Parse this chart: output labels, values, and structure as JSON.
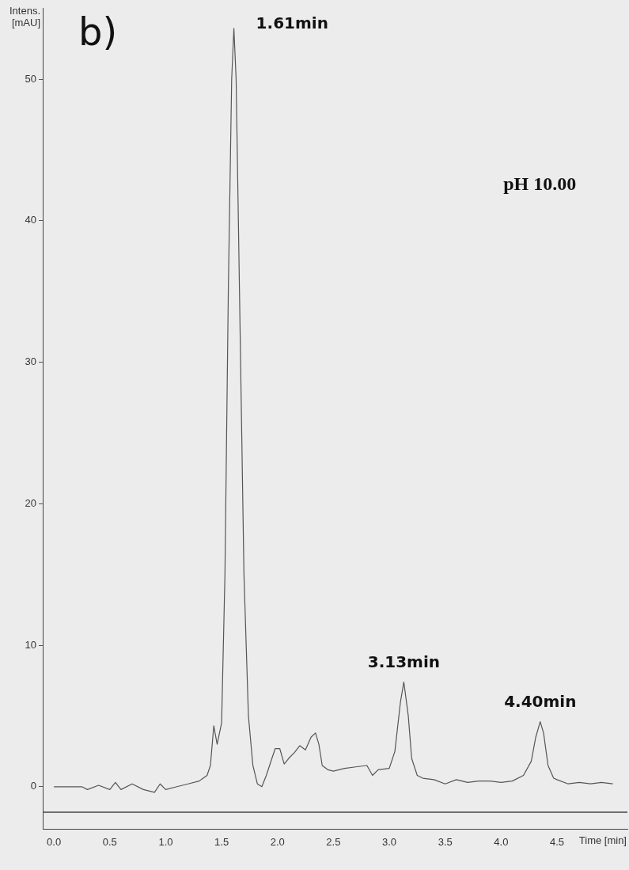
{
  "chart_data": {
    "type": "line",
    "xlabel": "Time [min]",
    "ylabel": "Intens. [mAU]",
    "annotations": [
      "b)",
      "pH 10.00",
      {
        "text": "1.61min",
        "x": 1.61,
        "y": 53.6
      },
      {
        "text": "3.13min",
        "x": 3.13,
        "y": 7.4
      },
      {
        "text": "4.40min",
        "x": 4.35,
        "y": 4.6
      }
    ],
    "xlim": [
      -0.1,
      5.13
    ],
    "ylim": [
      -3,
      55
    ],
    "xticks": [
      {
        "value": 0,
        "label": "0.0"
      },
      0.5,
      {
        "value": 1,
        "label": "1.0"
      },
      1.5,
      {
        "value": 2,
        "label": "2.0"
      },
      2.5,
      {
        "value": 3,
        "label": "3.0"
      },
      3.5,
      {
        "value": 4,
        "label": "4.0"
      },
      4.5
    ],
    "yticks": [
      0,
      10,
      20,
      30,
      40,
      50
    ],
    "ref_lines": [
      {
        "axis": "y",
        "value": -1.8,
        "color": "#444444"
      }
    ],
    "grid": false,
    "legend": false,
    "marker": "none",
    "line_style": "solid",
    "series": [
      {
        "color": "#555555",
        "x": [
          0,
          0.2,
          0.25,
          0.3,
          0.4,
          0.5,
          0.55,
          0.6,
          0.7,
          0.8,
          0.9,
          0.95,
          1.0,
          1.1,
          1.2,
          1.3,
          1.37,
          1.4,
          1.43,
          1.46,
          1.5,
          1.53,
          1.56,
          1.59,
          1.61,
          1.63,
          1.66,
          1.7,
          1.74,
          1.78,
          1.82,
          1.86,
          1.9,
          1.95,
          1.98,
          2.02,
          2.06,
          2.1,
          2.15,
          2.2,
          2.25,
          2.3,
          2.34,
          2.37,
          2.4,
          2.45,
          2.5,
          2.6,
          2.7,
          2.8,
          2.85,
          2.9,
          3.0,
          3.05,
          3.1,
          3.13,
          3.17,
          3.2,
          3.25,
          3.3,
          3.4,
          3.5,
          3.6,
          3.7,
          3.8,
          3.9,
          4.0,
          4.1,
          4.2,
          4.27,
          4.31,
          4.35,
          4.38,
          4.42,
          4.47,
          4.5,
          4.6,
          4.7,
          4.8,
          4.9,
          5.0
        ],
        "values": [
          0,
          0,
          0,
          -0.2,
          0.1,
          -0.2,
          0.3,
          -0.2,
          0.2,
          -0.2,
          -0.4,
          0.2,
          -0.2,
          0,
          0.2,
          0.4,
          0.8,
          1.5,
          4.3,
          3.0,
          4.5,
          15,
          35,
          50,
          53.6,
          50,
          35,
          15,
          5,
          1.5,
          0.2,
          0,
          0.8,
          2.0,
          2.7,
          2.7,
          1.6,
          2.0,
          2.4,
          2.9,
          2.6,
          3.5,
          3.8,
          3.0,
          1.5,
          1.2,
          1.1,
          1.3,
          1.4,
          1.5,
          0.8,
          1.2,
          1.3,
          2.5,
          6.0,
          7.4,
          5,
          2,
          0.8,
          0.6,
          0.5,
          0.2,
          0.5,
          0.3,
          0.4,
          0.4,
          0.3,
          0.4,
          0.8,
          1.8,
          3.5,
          4.6,
          3.8,
          1.5,
          0.6,
          0.5,
          0.2,
          0.3,
          0.2,
          0.3,
          0.2
        ]
      }
    ]
  }
}
